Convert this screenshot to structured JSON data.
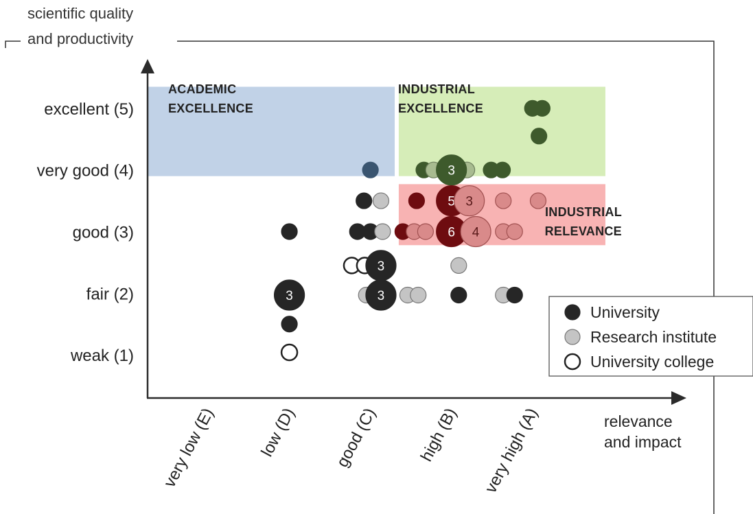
{
  "chart_data": {
    "type": "scatter",
    "title": "",
    "ylabel": [
      "scientific quality",
      "and productivity"
    ],
    "xlabel": [
      "relevance",
      "and impact"
    ],
    "y_ticks": [
      {
        "value": 5,
        "label": "excellent  (5)"
      },
      {
        "value": 4,
        "label": "very good  (4)"
      },
      {
        "value": 3,
        "label": "good  (3)"
      },
      {
        "value": 2,
        "label": "fair  (2)"
      },
      {
        "value": 1,
        "label": "weak  (1)"
      }
    ],
    "x_ticks": [
      {
        "value": 1,
        "label": "very low  (E)"
      },
      {
        "value": 2,
        "label": "low  (D)"
      },
      {
        "value": 3,
        "label": "good  (C)"
      },
      {
        "value": 4,
        "label": "high  (B)"
      },
      {
        "value": 5,
        "label": "very high  (A)"
      }
    ],
    "xlim": [
      0.25,
      6.9
    ],
    "ylim": [
      0.3,
      5.8
    ],
    "regions": [
      {
        "name": "academic",
        "label": [
          "ACADEMIC",
          "EXCELLENCE"
        ],
        "x0": 0.25,
        "x1": 3.3,
        "y0": 3.9,
        "y1": 5.35,
        "fill": "#c1d2e7",
        "text_color": "#3a5f8c"
      },
      {
        "name": "industrial-excellence",
        "label": [
          "INDUSTRIAL",
          "EXCELLENCE"
        ],
        "x0": 3.35,
        "x1": 5.9,
        "y0": 3.9,
        "y1": 5.35,
        "fill": "#d6edb8",
        "text_color": "#3f7d1f"
      },
      {
        "name": "industrial-relevance",
        "label": [
          "INDUSTRIAL",
          "RELEVANCE"
        ],
        "x0": 3.35,
        "x1": 5.9,
        "y0": 2.78,
        "y1": 3.77,
        "fill": "#f8b3b3",
        "text_color": "#d23b2a"
      }
    ],
    "series": [
      {
        "name": "University",
        "type": "university",
        "points": [
          {
            "x": 5.0,
            "y": 5.0
          },
          {
            "x": 5.12,
            "y": 5.0
          },
          {
            "x": 5.08,
            "y": 4.55
          },
          {
            "x": 4.0,
            "y": 4.0,
            "count": 3
          },
          {
            "x": 3.66,
            "y": 4.0
          },
          {
            "x": 4.49,
            "y": 4.0
          },
          {
            "x": 4.63,
            "y": 4.0
          },
          {
            "x": 3.0,
            "y": 4.0
          },
          {
            "x": 2.92,
            "y": 3.5
          },
          {
            "x": 3.57,
            "y": 3.5
          },
          {
            "x": 4.0,
            "y": 3.5,
            "count": 5
          },
          {
            "x": 2.0,
            "y": 3.0
          },
          {
            "x": 2.84,
            "y": 3.0
          },
          {
            "x": 3.0,
            "y": 3.0
          },
          {
            "x": 3.4,
            "y": 3.0
          },
          {
            "x": 4.0,
            "y": 3.0,
            "count": 6
          },
          {
            "x": 3.13,
            "y": 2.45,
            "count": 3
          },
          {
            "x": 2.0,
            "y": 1.97,
            "count": 3
          },
          {
            "x": 3.13,
            "y": 1.97,
            "count": 3
          },
          {
            "x": 4.09,
            "y": 1.97
          },
          {
            "x": 4.78,
            "y": 1.97
          },
          {
            "x": 2.0,
            "y": 1.5
          }
        ]
      },
      {
        "name": "Research institute",
        "type": "institute",
        "points": [
          {
            "x": 3.78,
            "y": 4.0
          },
          {
            "x": 4.19,
            "y": 4.0
          },
          {
            "x": 3.13,
            "y": 3.5
          },
          {
            "x": 4.22,
            "y": 3.5,
            "count": 3
          },
          {
            "x": 4.64,
            "y": 3.5
          },
          {
            "x": 5.07,
            "y": 3.5
          },
          {
            "x": 3.15,
            "y": 3.0
          },
          {
            "x": 3.54,
            "y": 3.0
          },
          {
            "x": 3.68,
            "y": 3.0
          },
          {
            "x": 4.3,
            "y": 3.0,
            "count": 4
          },
          {
            "x": 4.64,
            "y": 3.0
          },
          {
            "x": 4.78,
            "y": 3.0
          },
          {
            "x": 4.09,
            "y": 2.45
          },
          {
            "x": 2.95,
            "y": 1.97
          },
          {
            "x": 3.46,
            "y": 1.97
          },
          {
            "x": 3.59,
            "y": 1.97
          },
          {
            "x": 4.64,
            "y": 1.97
          }
        ]
      },
      {
        "name": "University college",
        "type": "college",
        "points": [
          {
            "x": 2.77,
            "y": 2.45
          },
          {
            "x": 2.93,
            "y": 2.45
          },
          {
            "x": 2.0,
            "y": 1.04
          }
        ]
      }
    ],
    "legend": {
      "position": "bottom-right",
      "items": [
        {
          "type": "university",
          "label": "University"
        },
        {
          "type": "institute",
          "label": "Research institute"
        },
        {
          "type": "college",
          "label": "University college"
        }
      ]
    },
    "colors": {
      "university": "#262626",
      "institute": "#c4c4c4",
      "college": "#ffffff",
      "university_blue": "#3a5570",
      "university_green": "#3e5a2c",
      "university_red": "#6e0c10",
      "institute_green": "#a8bb90",
      "institute_red": "#d98a8a"
    }
  }
}
